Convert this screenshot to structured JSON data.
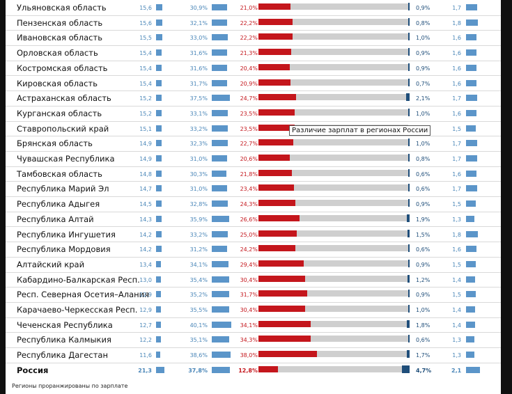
{
  "table": {
    "rows": [
      {
        "name": "Ульяновская область",
        "v1": "15,6",
        "v2": "30,9%",
        "v3": "21,0%",
        "v4": "0,9%",
        "v5": "1,7",
        "r1": 15.6,
        "r2": 30.9,
        "r3": 21.0,
        "r4": 0.9,
        "r5": 1.7
      },
      {
        "name": "Пензенская область",
        "v1": "15,6",
        "v2": "32,1%",
        "v3": "22,2%",
        "v4": "0,8%",
        "v5": "1,8",
        "r1": 15.6,
        "r2": 32.1,
        "r3": 22.2,
        "r4": 0.8,
        "r5": 1.8
      },
      {
        "name": "Ивановская область",
        "v1": "15,5",
        "v2": "33,0%",
        "v3": "22,2%",
        "v4": "1,0%",
        "v5": "1,6",
        "r1": 15.5,
        "r2": 33.0,
        "r3": 22.2,
        "r4": 1.0,
        "r5": 1.6
      },
      {
        "name": "Орловская область",
        "v1": "15,4",
        "v2": "31,6%",
        "v3": "21,3%",
        "v4": "0,9%",
        "v5": "1,6",
        "r1": 15.4,
        "r2": 31.6,
        "r3": 21.3,
        "r4": 0.9,
        "r5": 1.6
      },
      {
        "name": "Костромская область",
        "v1": "15,4",
        "v2": "31,6%",
        "v3": "20,4%",
        "v4": "0,9%",
        "v5": "1,6",
        "r1": 15.4,
        "r2": 31.6,
        "r3": 20.4,
        "r4": 0.9,
        "r5": 1.6
      },
      {
        "name": "Кировская область",
        "v1": "15,4",
        "v2": "31,7%",
        "v3": "20,9%",
        "v4": "0,7%",
        "v5": "1,6",
        "r1": 15.4,
        "r2": 31.7,
        "r3": 20.9,
        "r4": 0.7,
        "r5": 1.6
      },
      {
        "name": "Астраханская область",
        "v1": "15,2",
        "v2": "37,5%",
        "v3": "24,7%",
        "v4": "2,1%",
        "v5": "1,7",
        "r1": 15.2,
        "r2": 37.5,
        "r3": 24.7,
        "r4": 2.1,
        "r5": 1.7
      },
      {
        "name": "Курганская область",
        "v1": "15,2",
        "v2": "33,1%",
        "v3": "23,5%",
        "v4": "1,0%",
        "v5": "1,6",
        "r1": 15.2,
        "r2": 33.1,
        "r3": 23.5,
        "r4": 1.0,
        "r5": 1.6
      },
      {
        "name": "Ставропольский край",
        "v1": "15,1",
        "v2": "33,2%",
        "v3": "23,5%",
        "v4": "%",
        "v5": "1,5",
        "r1": 15.1,
        "r2": 33.2,
        "r3": 23.5,
        "r4": 0.0,
        "r5": 1.5
      },
      {
        "name": "Брянская область",
        "v1": "14,9",
        "v2": "32,3%",
        "v3": "22,7%",
        "v4": "1,0%",
        "v5": "1,7",
        "r1": 14.9,
        "r2": 32.3,
        "r3": 22.7,
        "r4": 1.0,
        "r5": 1.7
      },
      {
        "name": "Чувашская Республика",
        "v1": "14,9",
        "v2": "31,0%",
        "v3": "20,6%",
        "v4": "0,8%",
        "v5": "1,7",
        "r1": 14.9,
        "r2": 31.0,
        "r3": 20.6,
        "r4": 0.8,
        "r5": 1.7
      },
      {
        "name": "Тамбовская область",
        "v1": "14,8",
        "v2": "30,3%",
        "v3": "21,8%",
        "v4": "0,6%",
        "v5": "1,6",
        "r1": 14.8,
        "r2": 30.3,
        "r3": 21.8,
        "r4": 0.6,
        "r5": 1.6
      },
      {
        "name": "Республика Марий Эл",
        "v1": "14,7",
        "v2": "31,0%",
        "v3": "23,4%",
        "v4": "0,6%",
        "v5": "1,7",
        "r1": 14.7,
        "r2": 31.0,
        "r3": 23.4,
        "r4": 0.6,
        "r5": 1.7
      },
      {
        "name": "Республика Адыгея",
        "v1": "14,5",
        "v2": "32,8%",
        "v3": "24,3%",
        "v4": "0,9%",
        "v5": "1,5",
        "r1": 14.5,
        "r2": 32.8,
        "r3": 24.3,
        "r4": 0.9,
        "r5": 1.5
      },
      {
        "name": "Республика Алтай",
        "v1": "14,3",
        "v2": "35,9%",
        "v3": "26,6%",
        "v4": "1,9%",
        "v5": "1,3",
        "r1": 14.3,
        "r2": 35.9,
        "r3": 26.6,
        "r4": 1.9,
        "r5": 1.3
      },
      {
        "name": "Республика Ингушетия",
        "v1": "14,2",
        "v2": "33,2%",
        "v3": "25,0%",
        "v4": "1,5%",
        "v5": "1,8",
        "r1": 14.2,
        "r2": 33.2,
        "r3": 25.0,
        "r4": 1.5,
        "r5": 1.8
      },
      {
        "name": "Республика Мордовия",
        "v1": "14,2",
        "v2": "31,2%",
        "v3": "24,2%",
        "v4": "0,6%",
        "v5": "1,6",
        "r1": 14.2,
        "r2": 31.2,
        "r3": 24.2,
        "r4": 0.6,
        "r5": 1.6
      },
      {
        "name": "Алтайский край",
        "v1": "13,4",
        "v2": "34,1%",
        "v3": "29,4%",
        "v4": "0,9%",
        "v5": "1,5",
        "r1": 13.4,
        "r2": 34.1,
        "r3": 29.4,
        "r4": 0.9,
        "r5": 1.5
      },
      {
        "name": "Кабардино-Балкарская Респ.",
        "v1": "13,0",
        "v2": "35,4%",
        "v3": "30,4%",
        "v4": "1,2%",
        "v5": "1,4",
        "r1": 13.0,
        "r2": 35.4,
        "r3": 30.4,
        "r4": 1.2,
        "r5": 1.4
      },
      {
        "name": "Респ. Северная Осетия–Алания",
        "v1": "12,9",
        "v2": "35,2%",
        "v3": "31,7%",
        "v4": "0,9%",
        "v5": "1,5",
        "r1": 12.9,
        "r2": 35.2,
        "r3": 31.7,
        "r4": 0.9,
        "r5": 1.5
      },
      {
        "name": "Карачаево-Черкесская Респ.",
        "v1": "12,9",
        "v2": "35,5%",
        "v3": "30,4%",
        "v4": "1,0%",
        "v5": "1,4",
        "r1": 12.9,
        "r2": 35.5,
        "r3": 30.4,
        "r4": 1.0,
        "r5": 1.4
      },
      {
        "name": "Чеченская Республика",
        "v1": "12,7",
        "v2": "40,1%",
        "v3": "34,1%",
        "v4": "1,8%",
        "v5": "1,4",
        "r1": 12.7,
        "r2": 40.1,
        "r3": 34.1,
        "r4": 1.8,
        "r5": 1.4
      },
      {
        "name": "Республика Калмыкия",
        "v1": "12,2",
        "v2": "35,1%",
        "v3": "34,3%",
        "v4": "0,6%",
        "v5": "1,3",
        "r1": 12.2,
        "r2": 35.1,
        "r3": 34.3,
        "r4": 0.6,
        "r5": 1.3
      },
      {
        "name": "Республика Дагестан",
        "v1": "11,6",
        "v2": "38,6%",
        "v3": "38,0%",
        "v4": "1,7%",
        "v5": "1,3",
        "r1": 11.6,
        "r2": 38.6,
        "r3": 38.0,
        "r4": 1.7,
        "r5": 1.3
      }
    ],
    "total": {
      "name": "Россия",
      "v1": "21,3",
      "v2": "37,8%",
      "v3": "12,8%",
      "v4": "4,7%",
      "v5": "2,1",
      "r1": 21.3,
      "r2": 37.8,
      "r3": 12.8,
      "r4": 4.7,
      "r5": 2.1
    }
  },
  "tooltip": "Различие зарплат в регионах России",
  "footnote": "Регионы проранжированы по зарплате",
  "colors": {
    "blue": "#5b95c9",
    "red": "#c4161c",
    "navy": "#1f4e7a",
    "track": "#cfcfcf"
  }
}
